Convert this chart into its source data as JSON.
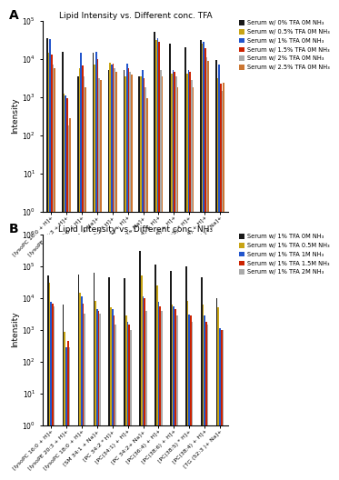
{
  "panel_A": {
    "title": "Lipid Intensity vs. Different conc. TFA",
    "label": "A",
    "categories": [
      "[lysoPC 16:0 + H]+",
      "[lysoPE 20:3 + H]+",
      "[lysoPC 18:0 + H]+",
      "[SM 34:1 + Na]+",
      "[PC 34:2 * H]+",
      "[PC(34:1) + H]+",
      "[PC 34:2+ Na]+",
      "[PC(36:4) + H]+",
      "[PC(38:6) + H]+",
      "[PC(38:5) * H]+",
      "[PC(38:4) + H]+",
      "[TG (52:3 )+ Na]+"
    ],
    "series_labels": [
      "Serum w/ 0% TFA 0M NH₃",
      "Serum w/ 0.5% TFA 0M NH₃",
      "Serum w/ 1% TFA 0M NH₃",
      "Serum w/ 1.5% TFA 0M NH₃",
      "Serum w/ 2% TFA 0M NH₃",
      "Serum w/ 2.5% TFA 0M NH₃"
    ],
    "colors": [
      "#1a1a1a",
      "#c8a415",
      "#2255cc",
      "#cc2200",
      "#aaaaaa",
      "#cc7733"
    ],
    "ylim": [
      1,
      100000.0
    ],
    "yticks": [
      1,
      10,
      100,
      1000,
      10000,
      100000
    ],
    "data": [
      [
        35000,
        15000,
        3500,
        14000,
        5000,
        5000,
        3500,
        50000,
        25000,
        20000,
        30000,
        9000
      ],
      [
        14000,
        1200,
        5500,
        7000,
        8000,
        3500,
        3500,
        30000,
        4000,
        4000,
        25000,
        3000
      ],
      [
        33000,
        1100,
        14000,
        15000,
        7000,
        7500,
        5000,
        35000,
        5000,
        5000,
        28000,
        7000
      ],
      [
        13000,
        900,
        6500,
        10000,
        7500,
        5500,
        3000,
        28000,
        4500,
        4500,
        19000,
        2200
      ],
      [
        7000,
        180,
        3500,
        3000,
        5500,
        4500,
        1800,
        5000,
        3500,
        2800,
        11000,
        1400
      ],
      [
        5500,
        280,
        1800,
        2800,
        4500,
        3800,
        900,
        3500,
        1800,
        1800,
        8500,
        2300
      ]
    ]
  },
  "panel_B": {
    "title": "Lipid Intensity vs. Different conc. NH₃",
    "label": "B",
    "categories": [
      "[lysoPC 16:0 + H]+",
      "[lysoPE 20:3 + H]+",
      "[lysoPC 18:0 + H]+",
      "[SM 34:1 + Na]+",
      "[PC 34:2 * H]+",
      "[PC(34:1) + H]+",
      "[PC 34:2+ Na]+",
      "[PC(36:4) + H]+",
      "[PC(38:6) + H]+",
      "[PC(38:5) * H]+",
      "[PC(38:4) + H]+",
      "[TG (52:3 )+ Na]+"
    ],
    "series_labels": [
      "Serum w/ 1% TFA 0M NH₃",
      "Serum w/ 1% TFA 0.5M NH₃",
      "Serum w/ 1% TFA 1M NH₃",
      "Serum w/ 1% TFA 1.5M NH₃",
      "Serum w/ 1% TFA 2M NH₃"
    ],
    "colors": [
      "#1a1a1a",
      "#c8a415",
      "#2255cc",
      "#cc2200",
      "#aaaaaa"
    ],
    "ylim": [
      1,
      1000000.0
    ],
    "yticks": [
      1,
      10,
      100,
      1000,
      10000,
      100000,
      1000000
    ],
    "data": [
      [
        50000,
        6000,
        55000,
        60000,
        45000,
        40000,
        300000,
        110000,
        70000,
        100000,
        45000,
        10000
      ],
      [
        30000,
        850,
        14000,
        8000,
        5000,
        2800,
        50000,
        25000,
        6000,
        8000,
        6000,
        5000
      ],
      [
        7500,
        280,
        11000,
        4500,
        4500,
        1800,
        11000,
        7500,
        5500,
        3000,
        2800,
        1100
      ],
      [
        6500,
        450,
        6500,
        3800,
        2800,
        1400,
        9500,
        5500,
        4500,
        2800,
        1800,
        950
      ],
      [
        5500,
        280,
        3200,
        3200,
        1400,
        950,
        3800,
        3800,
        2800,
        1800,
        1400,
        950
      ]
    ]
  }
}
